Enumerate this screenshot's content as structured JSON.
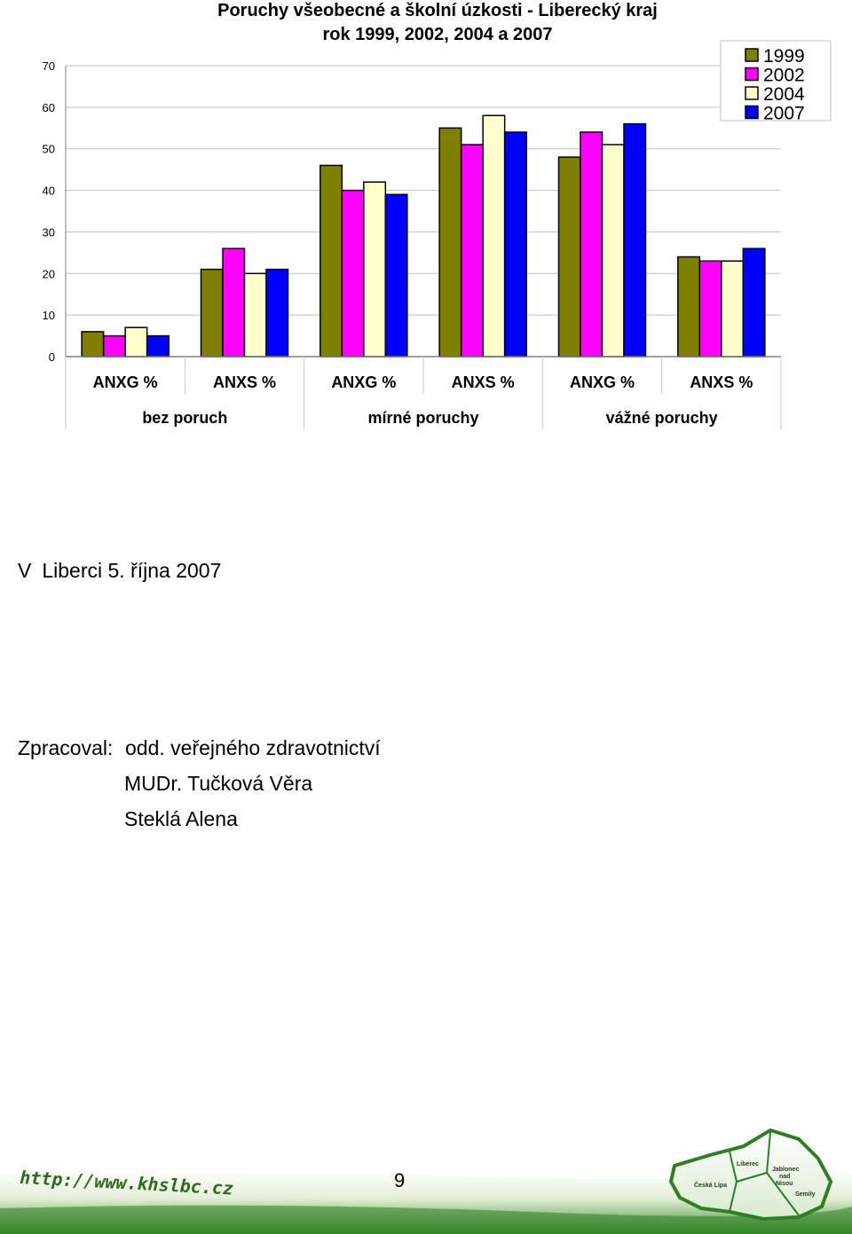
{
  "chart_data": {
    "type": "bar",
    "title": "Poruchy všeobecné a školní úzkosti -  Liberecký kraj",
    "subtitle": "rok 1999, 2002, 2004 a 2007",
    "categories": [
      "ANXG %",
      "ANXS %",
      "ANXG %",
      "ANXS %",
      "ANXG %",
      "ANXS %"
    ],
    "groups": [
      "bez poruch",
      "mírné poruchy",
      "vážné poruchy"
    ],
    "series": [
      {
        "name": "1999",
        "color": "#808000",
        "values": [
          6,
          21,
          46,
          55,
          48,
          24
        ]
      },
      {
        "name": "2002",
        "color": "#FF00FF",
        "values": [
          5,
          26,
          40,
          51,
          54,
          23
        ]
      },
      {
        "name": "2004",
        "color": "#FFFFCC",
        "values": [
          7,
          20,
          42,
          58,
          51,
          23
        ]
      },
      {
        "name": "2007",
        "color": "#0000FF",
        "values": [
          5,
          21,
          39,
          54,
          56,
          26
        ]
      }
    ],
    "ylim": [
      0,
      70
    ],
    "yticks": [
      0,
      10,
      20,
      30,
      40,
      50,
      60,
      70
    ],
    "grid": true,
    "legend": "top-right"
  },
  "place_date": {
    "prefix": "V",
    "text": "Liberci  5. října 2007"
  },
  "processed": {
    "label": "Zpracoval:",
    "department": "odd.  veřejného zdravotnictví",
    "names": [
      "MUDr. Tučková Věra",
      "Steklá Alena"
    ]
  },
  "footer": {
    "url": "http://www.khslbc.cz",
    "page_number": "9",
    "map_labels": [
      "Liberec",
      "Jablonec",
      "nad",
      "Nisou",
      "Česká Lípa",
      "Semily"
    ]
  }
}
